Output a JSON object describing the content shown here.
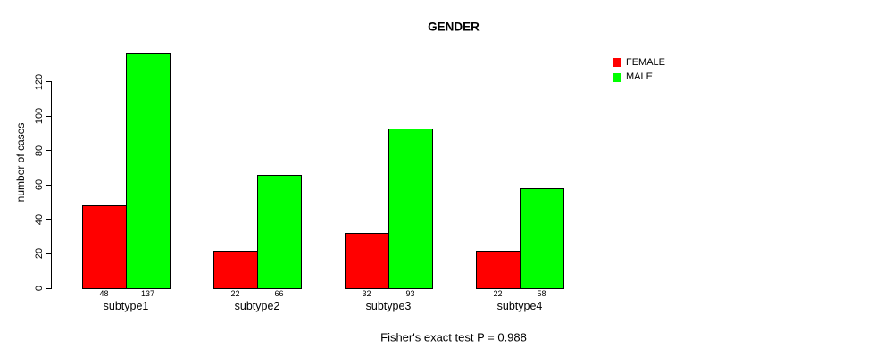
{
  "title": "GENDER",
  "chart_data": {
    "type": "bar",
    "title": "GENDER",
    "categories": [
      "subtype1",
      "subtype2",
      "subtype3",
      "subtype4"
    ],
    "series": [
      {
        "name": "FEMALE",
        "color": "#ff0000",
        "values": [
          48,
          22,
          32,
          22
        ]
      },
      {
        "name": "MALE",
        "color": "#00ff00",
        "values": [
          137,
          66,
          93,
          58
        ]
      }
    ],
    "bar_value_labels_shown": true,
    "xlabel": "",
    "ylabel": "number of cases",
    "yticks": [
      0,
      20,
      40,
      60,
      80,
      100,
      120
    ],
    "ylim": [
      0,
      137
    ],
    "grid": false,
    "legend_position": "top-right",
    "note": "Fisher's exact test P = 0.988"
  },
  "colors": {
    "background": "#ffffff",
    "axis": "#000000",
    "text": "#000000",
    "female": "#ff0000",
    "male": "#00ff00"
  }
}
